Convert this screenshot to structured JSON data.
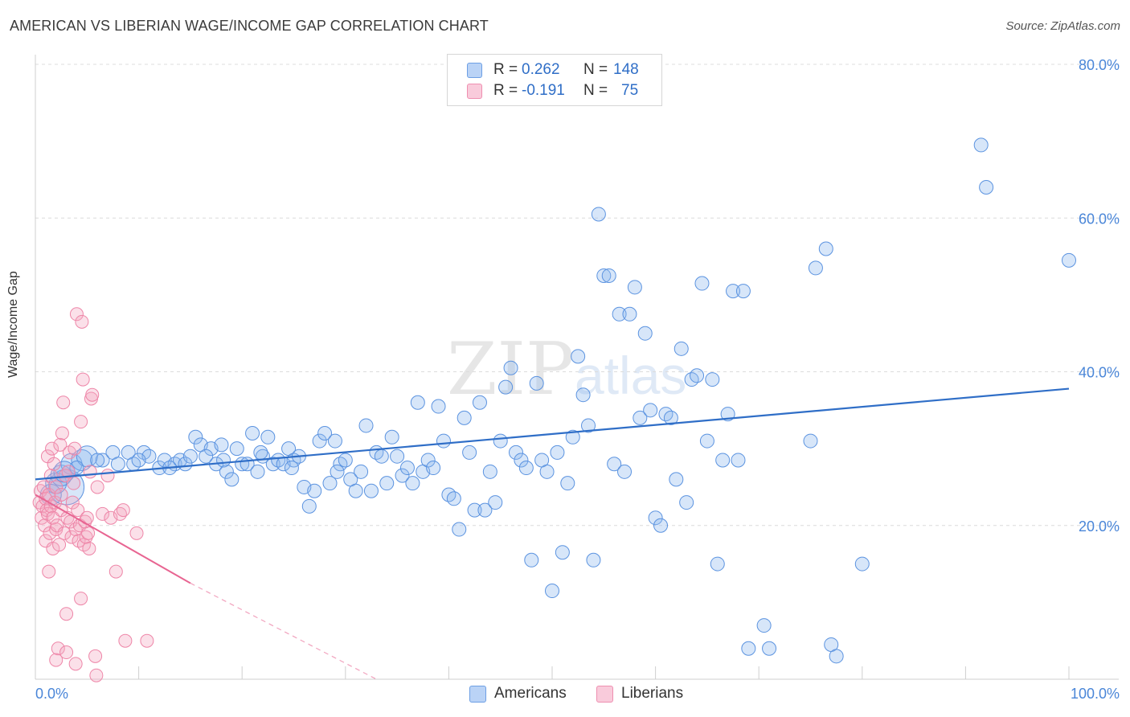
{
  "header": {
    "title": "AMERICAN VS LIBERIAN WAGE/INCOME GAP CORRELATION CHART",
    "source": "Source: ZipAtlas.com"
  },
  "watermark": {
    "zip": "ZIP",
    "atlas": "atlas"
  },
  "legend": {
    "americans": {
      "r_label": "R =",
      "r_value": "0.262",
      "n_label": "N =",
      "n_value": "148",
      "color": "#8db7ee"
    },
    "liberians": {
      "r_label": "R =",
      "r_value": "-0.191",
      "n_label": "N =",
      "n_value": "75",
      "color": "#f4a5bf"
    }
  },
  "bottom_legend": {
    "americans": "Americans",
    "liberians": "Liberians"
  },
  "chart_data": {
    "type": "scatter",
    "title": "AMERICAN VS LIBERIAN WAGE/INCOME GAP CORRELATION CHART",
    "xlabel": "",
    "ylabel": "Wage/Income Gap",
    "xlim": [
      0,
      100
    ],
    "ylim": [
      0,
      80
    ],
    "x_tick_labels": [
      "0.0%",
      "100.0%"
    ],
    "y_ticks": [
      20,
      40,
      60,
      80
    ],
    "y_tick_labels": [
      "20.0%",
      "40.0%",
      "60.0%",
      "80.0%"
    ],
    "grid": true,
    "legend_position": "top-center",
    "series": [
      {
        "name": "Americans",
        "color": "#5b93e0",
        "trend": {
          "x": [
            0,
            100
          ],
          "y": [
            26.0,
            37.8
          ],
          "color": "#2f6ec7"
        },
        "points": [
          [
            3.0,
            25.0,
            3
          ],
          [
            2.0,
            25.5,
            2
          ],
          [
            2.5,
            26.5,
            2
          ],
          [
            3.5,
            28.0,
            2
          ],
          [
            4.5,
            28.5,
            2
          ],
          [
            5.0,
            29.0,
            2
          ],
          [
            6.5,
            28.5,
            1
          ],
          [
            7.5,
            29.5,
            1
          ],
          [
            9.0,
            29.5,
            1
          ],
          [
            9.5,
            28.0,
            1
          ],
          [
            10.5,
            29.5,
            1
          ],
          [
            11.0,
            29.0,
            1
          ],
          [
            12.0,
            27.5,
            1
          ],
          [
            12.5,
            28.5,
            1
          ],
          [
            13.5,
            28.0,
            1
          ],
          [
            14.0,
            28.5,
            1
          ],
          [
            14.5,
            28.0,
            1
          ],
          [
            15.0,
            29.0,
            1
          ],
          [
            15.5,
            31.5,
            1
          ],
          [
            16.0,
            30.5,
            1
          ],
          [
            17.0,
            30.0,
            1
          ],
          [
            17.5,
            28.0,
            1
          ],
          [
            18.0,
            30.5,
            1
          ],
          [
            18.5,
            27.0,
            1
          ],
          [
            19.0,
            26.0,
            1
          ],
          [
            19.5,
            30.0,
            1
          ],
          [
            20.0,
            28.0,
            1
          ],
          [
            20.5,
            28.0,
            1
          ],
          [
            21.0,
            32.0,
            1
          ],
          [
            21.5,
            27.0,
            1
          ],
          [
            22.0,
            29.0,
            1
          ],
          [
            22.5,
            31.5,
            1
          ],
          [
            23.0,
            28.0,
            1
          ],
          [
            23.5,
            28.5,
            1
          ],
          [
            24.0,
            28.0,
            1
          ],
          [
            24.5,
            30.0,
            1
          ],
          [
            25.0,
            28.5,
            1
          ],
          [
            25.5,
            29.0,
            1
          ],
          [
            26.0,
            25.0,
            1
          ],
          [
            26.5,
            22.5,
            1
          ],
          [
            27.0,
            24.5,
            1
          ],
          [
            27.5,
            31.0,
            1
          ],
          [
            28.0,
            32.0,
            1
          ],
          [
            28.5,
            25.5,
            1
          ],
          [
            29.0,
            31.0,
            1
          ],
          [
            29.5,
            28.0,
            1
          ],
          [
            30.0,
            28.5,
            1
          ],
          [
            30.5,
            26.0,
            1
          ],
          [
            31.0,
            24.5,
            1
          ],
          [
            31.5,
            27.0,
            1
          ],
          [
            32.0,
            33.0,
            1
          ],
          [
            32.5,
            24.5,
            1
          ],
          [
            33.0,
            29.5,
            1
          ],
          [
            33.5,
            29.0,
            1
          ],
          [
            34.0,
            25.5,
            1
          ],
          [
            34.5,
            31.5,
            1
          ],
          [
            35.0,
            29.0,
            1
          ],
          [
            35.5,
            26.5,
            1
          ],
          [
            36.0,
            27.5,
            1
          ],
          [
            36.5,
            25.5,
            1
          ],
          [
            37.0,
            36.0,
            1
          ],
          [
            37.5,
            27.0,
            1
          ],
          [
            38.0,
            28.5,
            1
          ],
          [
            38.5,
            27.5,
            1
          ],
          [
            39.0,
            35.5,
            1
          ],
          [
            39.5,
            31.0,
            1
          ],
          [
            40.0,
            24.0,
            1
          ],
          [
            40.5,
            23.5,
            1
          ],
          [
            41.0,
            19.5,
            1
          ],
          [
            41.5,
            34.0,
            1
          ],
          [
            42.0,
            29.5,
            1
          ],
          [
            42.5,
            22.0,
            1
          ],
          [
            43.0,
            36.0,
            1
          ],
          [
            43.5,
            22.0,
            1
          ],
          [
            44.0,
            27.0,
            1
          ],
          [
            44.5,
            23.0,
            1
          ],
          [
            45.0,
            31.0,
            1
          ],
          [
            45.5,
            38.0,
            1
          ],
          [
            46.0,
            40.5,
            1
          ],
          [
            46.5,
            29.5,
            1
          ],
          [
            47.0,
            28.5,
            1
          ],
          [
            47.5,
            27.5,
            1
          ],
          [
            48.0,
            15.5,
            1
          ],
          [
            48.5,
            38.5,
            1
          ],
          [
            49.0,
            28.5,
            1
          ],
          [
            49.5,
            27.0,
            1
          ],
          [
            50.0,
            11.5,
            1
          ],
          [
            50.5,
            29.5,
            1
          ],
          [
            51.0,
            16.5,
            1
          ],
          [
            51.5,
            25.5,
            1
          ],
          [
            52.0,
            31.5,
            1
          ],
          [
            52.5,
            42.0,
            1
          ],
          [
            53.0,
            37.0,
            1
          ],
          [
            53.5,
            33.0,
            1
          ],
          [
            54.0,
            15.5,
            1
          ],
          [
            54.5,
            60.5,
            1
          ],
          [
            55.0,
            52.5,
            1
          ],
          [
            55.5,
            52.5,
            1
          ],
          [
            56.0,
            28.0,
            1
          ],
          [
            56.5,
            47.5,
            1
          ],
          [
            57.0,
            27.0,
            1
          ],
          [
            57.5,
            47.5,
            1
          ],
          [
            58.0,
            51.0,
            1
          ],
          [
            58.5,
            34.0,
            1
          ],
          [
            59.0,
            45.0,
            1
          ],
          [
            59.5,
            35.0,
            1
          ],
          [
            60.0,
            21.0,
            1
          ],
          [
            60.5,
            20.0,
            1
          ],
          [
            61.0,
            34.5,
            1
          ],
          [
            61.5,
            34.0,
            1
          ],
          [
            62.0,
            26.0,
            1
          ],
          [
            62.5,
            43.0,
            1
          ],
          [
            63.0,
            23.0,
            1
          ],
          [
            63.5,
            39.0,
            1
          ],
          [
            64.0,
            39.5,
            1
          ],
          [
            64.5,
            51.5,
            1
          ],
          [
            65.0,
            31.0,
            1
          ],
          [
            65.5,
            39.0,
            1
          ],
          [
            66.0,
            15.0,
            1
          ],
          [
            66.5,
            28.5,
            1
          ],
          [
            67.0,
            34.5,
            1
          ],
          [
            67.5,
            50.5,
            1
          ],
          [
            68.0,
            28.5,
            1
          ],
          [
            68.5,
            50.5,
            1
          ],
          [
            69.0,
            4.0,
            1
          ],
          [
            70.5,
            7.0,
            1
          ],
          [
            71.0,
            4.0,
            1
          ],
          [
            75.0,
            31.0,
            1
          ],
          [
            75.5,
            53.5,
            1
          ],
          [
            76.5,
            56.0,
            1
          ],
          [
            77.0,
            4.5,
            1
          ],
          [
            77.5,
            3.0,
            1
          ],
          [
            80.0,
            15.0,
            1
          ],
          [
            91.5,
            69.5,
            1
          ],
          [
            92.0,
            64.0,
            1
          ],
          [
            100.0,
            54.5,
            1
          ],
          [
            1.5,
            24.0,
            2
          ],
          [
            2.8,
            27.0,
            2
          ],
          [
            4.0,
            27.5,
            1
          ],
          [
            6.0,
            28.5,
            1
          ],
          [
            8.0,
            28.0,
            1
          ],
          [
            10.0,
            28.5,
            1
          ],
          [
            13.0,
            27.5,
            1
          ],
          [
            16.5,
            29.0,
            1
          ],
          [
            18.2,
            28.5,
            1
          ],
          [
            21.8,
            29.5,
            1
          ],
          [
            24.8,
            27.5,
            1
          ],
          [
            29.2,
            27.0,
            1
          ]
        ]
      },
      {
        "name": "Liberians",
        "color": "#ee86a8",
        "trend": {
          "x": [
            0,
            15
          ],
          "y": [
            24.0,
            12.5
          ],
          "dashed_to": [
            33,
            0
          ],
          "color": "#e86592"
        },
        "points": [
          [
            0.4,
            23.0
          ],
          [
            0.5,
            24.5
          ],
          [
            0.6,
            21.0
          ],
          [
            0.7,
            22.5
          ],
          [
            0.8,
            25.0
          ],
          [
            0.9,
            20.0
          ],
          [
            1.0,
            23.5
          ],
          [
            1.0,
            18.0
          ],
          [
            1.1,
            22.0
          ],
          [
            1.2,
            21.5
          ],
          [
            1.2,
            29.0
          ],
          [
            1.3,
            24.0
          ],
          [
            1.3,
            14.0
          ],
          [
            1.4,
            19.0
          ],
          [
            1.5,
            26.5
          ],
          [
            1.5,
            22.5
          ],
          [
            1.6,
            30.0
          ],
          [
            1.7,
            21.0
          ],
          [
            1.7,
            17.0
          ],
          [
            1.8,
            28.0
          ],
          [
            1.9,
            23.0
          ],
          [
            2.0,
            19.5
          ],
          [
            2.0,
            25.0
          ],
          [
            2.1,
            20.0
          ],
          [
            2.2,
            4.0
          ],
          [
            2.3,
            17.5
          ],
          [
            2.4,
            30.5
          ],
          [
            2.5,
            24.0
          ],
          [
            2.5,
            22.0
          ],
          [
            2.6,
            32.0
          ],
          [
            2.7,
            36.0
          ],
          [
            2.8,
            19.0
          ],
          [
            2.9,
            26.5
          ],
          [
            3.0,
            3.5
          ],
          [
            3.0,
            8.5
          ],
          [
            3.1,
            21.0
          ],
          [
            3.2,
            27.0
          ],
          [
            3.3,
            29.5
          ],
          [
            3.4,
            20.5
          ],
          [
            3.5,
            18.5
          ],
          [
            3.6,
            23.0
          ],
          [
            3.7,
            25.5
          ],
          [
            3.8,
            30.0
          ],
          [
            3.9,
            2.0
          ],
          [
            3.9,
            19.5
          ],
          [
            4.0,
            47.5
          ],
          [
            4.1,
            22.0
          ],
          [
            4.2,
            18.0
          ],
          [
            4.3,
            20.0
          ],
          [
            4.4,
            33.5
          ],
          [
            4.4,
            10.5
          ],
          [
            4.5,
            46.5
          ],
          [
            4.6,
            39.0
          ],
          [
            4.7,
            17.5
          ],
          [
            4.8,
            20.5
          ],
          [
            4.9,
            18.5
          ],
          [
            5.0,
            21.0
          ],
          [
            5.1,
            19.0
          ],
          [
            5.2,
            17.0
          ],
          [
            5.3,
            27.0
          ],
          [
            5.4,
            36.5
          ],
          [
            5.5,
            37.0
          ],
          [
            5.8,
            3.0
          ],
          [
            5.9,
            0.5
          ],
          [
            6.0,
            25.0
          ],
          [
            6.5,
            21.5
          ],
          [
            7.0,
            26.5
          ],
          [
            7.3,
            21.0
          ],
          [
            7.8,
            14.0
          ],
          [
            8.2,
            21.5
          ],
          [
            8.5,
            22.0
          ],
          [
            8.7,
            5.0
          ],
          [
            9.8,
            19.0
          ],
          [
            10.8,
            5.0
          ],
          [
            2.0,
            2.5
          ]
        ]
      }
    ]
  }
}
